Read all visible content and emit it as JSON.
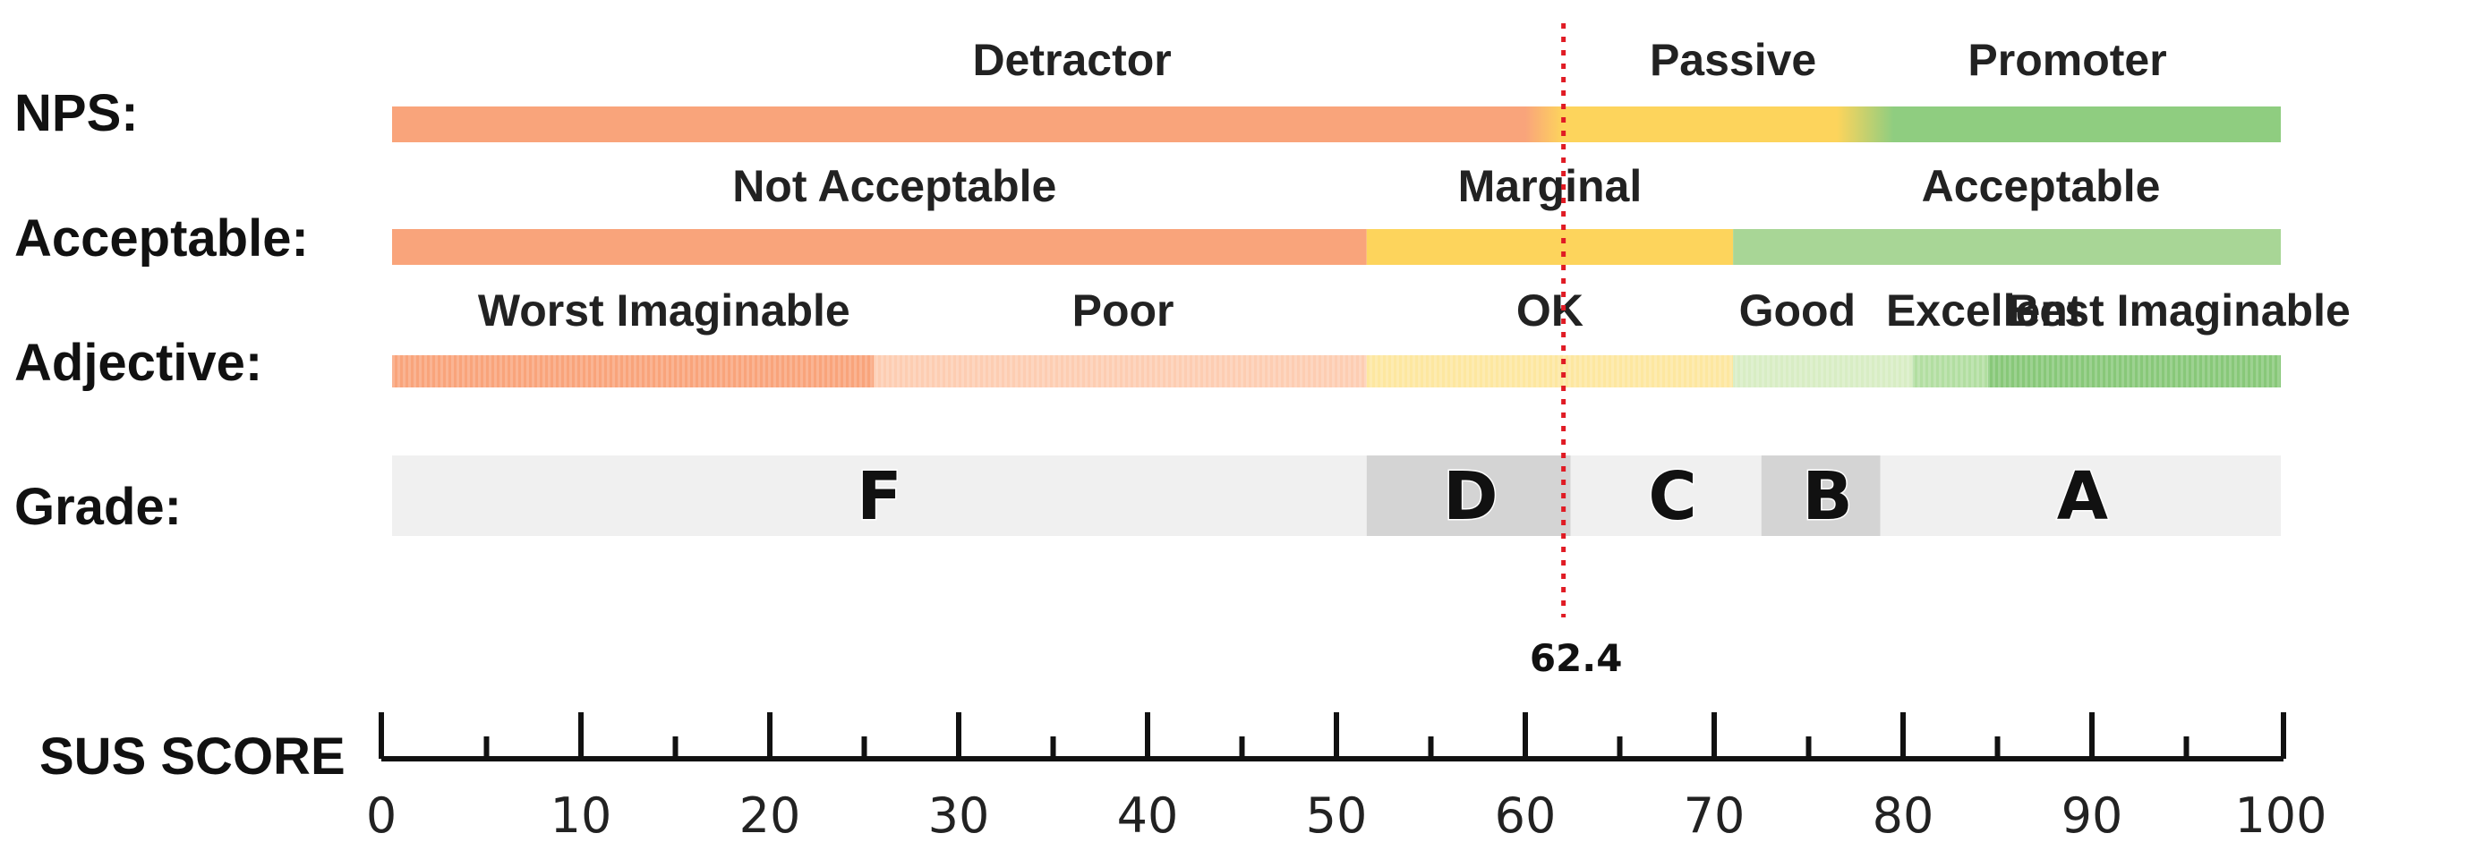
{
  "chart_data": {
    "type": "bar",
    "title": "",
    "axis": {
      "title": "SUS SCORE",
      "xlim": [
        0,
        100
      ],
      "major_ticks": [
        0,
        10,
        20,
        30,
        40,
        50,
        60,
        70,
        80,
        90,
        100
      ],
      "tick_labels": [
        "0",
        "10",
        "20",
        "30",
        "40",
        "50",
        "60",
        "70",
        "80",
        "90",
        "100"
      ],
      "minor_ticks": [
        5,
        15,
        25,
        35,
        45,
        55,
        65,
        75,
        85,
        95
      ]
    },
    "marker": {
      "value": 62.4,
      "label": "62.4",
      "color": "#e01b24",
      "style": "dotted"
    },
    "rows": [
      {
        "key": "nps",
        "label": "NPS:",
        "segments": [
          {
            "label": "Detractor",
            "start": 0,
            "end": 61,
            "color": "#f9a47b"
          },
          {
            "label": "Passive",
            "start": 61,
            "end": 78,
            "color": "#fdd45c"
          },
          {
            "label": "Promoter",
            "start": 78,
            "end": 100,
            "color": "#8fcd80"
          }
        ]
      },
      {
        "key": "acceptable",
        "label": "Acceptable:",
        "segments": [
          {
            "label": "Not Acceptable",
            "start": 0,
            "end": 51.6,
            "color": "#f9a47b"
          },
          {
            "label": "Marginal",
            "start": 51.6,
            "end": 71,
            "color": "#fdd45c"
          },
          {
            "label": "Acceptable",
            "start": 71,
            "end": 100,
            "color": "#a8d696"
          }
        ]
      },
      {
        "key": "adjective",
        "label": "Adjective:",
        "segments": [
          {
            "label": "Worst Imaginable",
            "start": 0,
            "end": 25.5,
            "color": "#f9a47b"
          },
          {
            "label": "Poor",
            "start": 25.5,
            "end": 51.6,
            "color": "#fdcdb2"
          },
          {
            "label": "OK",
            "start": 51.6,
            "end": 71,
            "color": "#fde7a0"
          },
          {
            "label": "Good",
            "start": 71,
            "end": 80.5,
            "color": "#d8edc4"
          },
          {
            "label": "Excellent",
            "start": 80.5,
            "end": 84.5,
            "color": "#b2dea1"
          },
          {
            "label": "Best Imaginable",
            "start": 84.5,
            "end": 100,
            "color": "#88c879"
          }
        ]
      },
      {
        "key": "grade",
        "label": "Grade:",
        "segments": [
          {
            "label": "F",
            "start": 0,
            "end": 51.6,
            "color": "#f0f0f0"
          },
          {
            "label": "D",
            "start": 51.6,
            "end": 62.4,
            "color": "#d4d4d4"
          },
          {
            "label": "C",
            "start": 62.4,
            "end": 72.5,
            "color": "#f0f0f0"
          },
          {
            "label": "B",
            "start": 72.5,
            "end": 78.8,
            "color": "#d4d4d4"
          },
          {
            "label": "A",
            "start": 78.8,
            "end": 100,
            "color": "#f0f0f0"
          }
        ]
      }
    ]
  }
}
